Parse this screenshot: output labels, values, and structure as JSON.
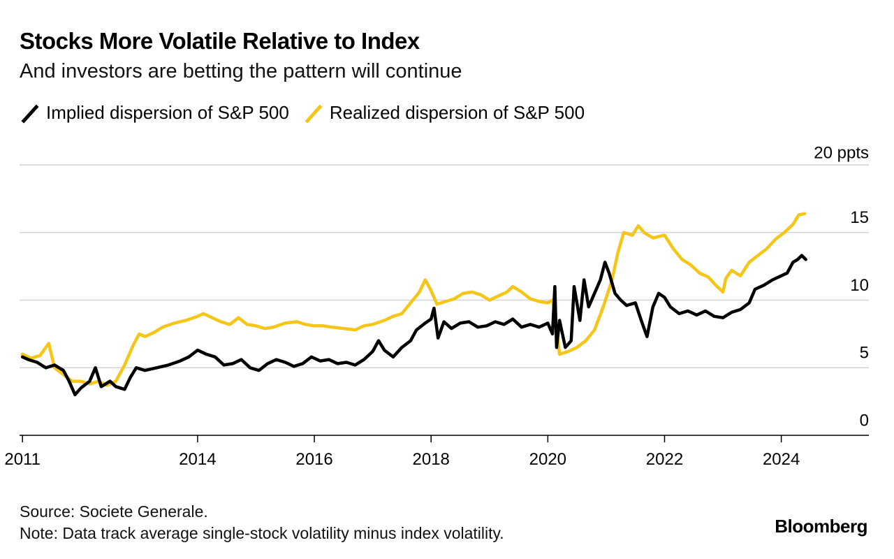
{
  "header": {
    "title": "Stocks More Volatile Relative to Index",
    "subtitle": "And investors are betting the pattern will continue"
  },
  "legend": [
    {
      "label": "Implied dispersion of S&P 500",
      "color": "#000000"
    },
    {
      "label": "Realized dispersion of S&P 500",
      "color": "#F5C518"
    }
  ],
  "footer": {
    "source": "Source: Societe Generale.",
    "note": "Note: Data track average single-stock volatility minus index volatility.",
    "brand": "Bloomberg"
  },
  "chart_data": {
    "type": "line",
    "title": "Stocks More Volatile Relative to Index",
    "subtitle": "And investors are betting the pattern will continue",
    "xlabel": "",
    "ylabel": "",
    "y_unit_label": "20 ppts",
    "ylim": [
      0,
      20
    ],
    "xlim": [
      2010.95,
      2025.5
    ],
    "y_ticks": [
      {
        "value": 0,
        "label": "0"
      },
      {
        "value": 5,
        "label": "5"
      },
      {
        "value": 10,
        "label": "10"
      },
      {
        "value": 15,
        "label": "15"
      },
      {
        "value": 20,
        "label": "20 ppts"
      }
    ],
    "x_ticks": [
      {
        "value": 2011,
        "label": "2011"
      },
      {
        "value": 2014,
        "label": "2014"
      },
      {
        "value": 2016,
        "label": "2016"
      },
      {
        "value": 2018,
        "label": "2018"
      },
      {
        "value": 2020,
        "label": "2020"
      },
      {
        "value": 2022,
        "label": "2022"
      },
      {
        "value": 2024,
        "label": "2024"
      }
    ],
    "grid": true,
    "legend_position": "top-left",
    "series": [
      {
        "name": "Realized dispersion of S&P 500",
        "color": "#F5C518",
        "points": [
          [
            2011.0,
            6.0
          ],
          [
            2011.15,
            5.7
          ],
          [
            2011.3,
            5.9
          ],
          [
            2011.45,
            6.8
          ],
          [
            2011.55,
            5.0
          ],
          [
            2011.7,
            4.5
          ],
          [
            2011.85,
            4.0
          ],
          [
            2012.0,
            4.0
          ],
          [
            2012.15,
            3.8
          ],
          [
            2012.3,
            4.0
          ],
          [
            2012.45,
            3.7
          ],
          [
            2012.6,
            4.0
          ],
          [
            2012.75,
            5.2
          ],
          [
            2012.9,
            6.7
          ],
          [
            2013.0,
            7.5
          ],
          [
            2013.1,
            7.3
          ],
          [
            2013.25,
            7.6
          ],
          [
            2013.4,
            8.0
          ],
          [
            2013.6,
            8.3
          ],
          [
            2013.8,
            8.5
          ],
          [
            2014.0,
            8.8
          ],
          [
            2014.1,
            9.0
          ],
          [
            2014.25,
            8.7
          ],
          [
            2014.4,
            8.4
          ],
          [
            2014.55,
            8.2
          ],
          [
            2014.7,
            8.7
          ],
          [
            2014.85,
            8.2
          ],
          [
            2015.0,
            8.1
          ],
          [
            2015.15,
            7.9
          ],
          [
            2015.3,
            8.0
          ],
          [
            2015.5,
            8.3
          ],
          [
            2015.7,
            8.4
          ],
          [
            2015.85,
            8.2
          ],
          [
            2016.0,
            8.1
          ],
          [
            2016.15,
            8.1
          ],
          [
            2016.3,
            8.0
          ],
          [
            2016.5,
            7.9
          ],
          [
            2016.7,
            7.8
          ],
          [
            2016.85,
            8.1
          ],
          [
            2017.0,
            8.2
          ],
          [
            2017.2,
            8.5
          ],
          [
            2017.35,
            8.8
          ],
          [
            2017.5,
            9.0
          ],
          [
            2017.65,
            9.8
          ],
          [
            2017.8,
            10.6
          ],
          [
            2017.9,
            11.5
          ],
          [
            2018.0,
            10.7
          ],
          [
            2018.1,
            9.7
          ],
          [
            2018.25,
            9.9
          ],
          [
            2018.4,
            10.1
          ],
          [
            2018.55,
            10.5
          ],
          [
            2018.7,
            10.6
          ],
          [
            2018.85,
            10.4
          ],
          [
            2019.0,
            10.0
          ],
          [
            2019.15,
            10.3
          ],
          [
            2019.3,
            10.6
          ],
          [
            2019.4,
            11.0
          ],
          [
            2019.55,
            10.6
          ],
          [
            2019.7,
            10.1
          ],
          [
            2019.85,
            9.9
          ],
          [
            2020.0,
            9.8
          ],
          [
            2020.08,
            10.0
          ],
          [
            2020.12,
            9.0
          ],
          [
            2020.2,
            6.0
          ],
          [
            2020.35,
            6.2
          ],
          [
            2020.5,
            6.5
          ],
          [
            2020.65,
            7.0
          ],
          [
            2020.8,
            7.8
          ],
          [
            2020.95,
            9.5
          ],
          [
            2021.1,
            11.5
          ],
          [
            2021.2,
            13.5
          ],
          [
            2021.3,
            15.0
          ],
          [
            2021.45,
            14.8
          ],
          [
            2021.55,
            15.5
          ],
          [
            2021.65,
            15.0
          ],
          [
            2021.8,
            14.6
          ],
          [
            2022.0,
            14.8
          ],
          [
            2022.15,
            13.8
          ],
          [
            2022.3,
            13.0
          ],
          [
            2022.45,
            12.6
          ],
          [
            2022.6,
            12.0
          ],
          [
            2022.75,
            11.7
          ],
          [
            2022.9,
            11.0
          ],
          [
            2023.0,
            10.6
          ],
          [
            2023.05,
            11.6
          ],
          [
            2023.15,
            12.2
          ],
          [
            2023.3,
            11.8
          ],
          [
            2023.45,
            12.8
          ],
          [
            2023.6,
            13.3
          ],
          [
            2023.75,
            13.8
          ],
          [
            2023.9,
            14.5
          ],
          [
            2024.05,
            15.0
          ],
          [
            2024.2,
            15.6
          ],
          [
            2024.3,
            16.3
          ],
          [
            2024.4,
            16.4
          ]
        ]
      },
      {
        "name": "Implied dispersion of S&P 500",
        "color": "#000000",
        "points": [
          [
            2011.0,
            5.8
          ],
          [
            2011.1,
            5.6
          ],
          [
            2011.25,
            5.4
          ],
          [
            2011.4,
            5.0
          ],
          [
            2011.55,
            5.2
          ],
          [
            2011.7,
            4.8
          ],
          [
            2011.8,
            4.0
          ],
          [
            2011.9,
            3.0
          ],
          [
            2012.0,
            3.5
          ],
          [
            2012.15,
            4.0
          ],
          [
            2012.25,
            5.0
          ],
          [
            2012.35,
            3.6
          ],
          [
            2012.5,
            4.0
          ],
          [
            2012.6,
            3.6
          ],
          [
            2012.75,
            3.4
          ],
          [
            2012.85,
            4.3
          ],
          [
            2012.95,
            5.0
          ],
          [
            2013.1,
            4.8
          ],
          [
            2013.3,
            5.0
          ],
          [
            2013.5,
            5.2
          ],
          [
            2013.7,
            5.5
          ],
          [
            2013.85,
            5.8
          ],
          [
            2014.0,
            6.3
          ],
          [
            2014.15,
            6.0
          ],
          [
            2014.3,
            5.8
          ],
          [
            2014.45,
            5.2
          ],
          [
            2014.6,
            5.3
          ],
          [
            2014.75,
            5.6
          ],
          [
            2014.9,
            5.0
          ],
          [
            2015.05,
            4.8
          ],
          [
            2015.2,
            5.3
          ],
          [
            2015.35,
            5.6
          ],
          [
            2015.5,
            5.4
          ],
          [
            2015.65,
            5.1
          ],
          [
            2015.8,
            5.3
          ],
          [
            2015.95,
            5.8
          ],
          [
            2016.1,
            5.5
          ],
          [
            2016.25,
            5.6
          ],
          [
            2016.4,
            5.3
          ],
          [
            2016.55,
            5.4
          ],
          [
            2016.7,
            5.2
          ],
          [
            2016.85,
            5.6
          ],
          [
            2017.0,
            6.2
          ],
          [
            2017.1,
            7.0
          ],
          [
            2017.2,
            6.3
          ],
          [
            2017.35,
            5.8
          ],
          [
            2017.5,
            6.5
          ],
          [
            2017.65,
            7.0
          ],
          [
            2017.75,
            7.8
          ],
          [
            2017.9,
            8.3
          ],
          [
            2018.0,
            8.6
          ],
          [
            2018.05,
            9.4
          ],
          [
            2018.12,
            7.2
          ],
          [
            2018.22,
            8.4
          ],
          [
            2018.35,
            7.9
          ],
          [
            2018.5,
            8.3
          ],
          [
            2018.65,
            8.4
          ],
          [
            2018.8,
            8.0
          ],
          [
            2018.95,
            8.1
          ],
          [
            2019.1,
            8.4
          ],
          [
            2019.25,
            8.2
          ],
          [
            2019.4,
            8.6
          ],
          [
            2019.55,
            8.0
          ],
          [
            2019.7,
            8.2
          ],
          [
            2019.85,
            8.0
          ],
          [
            2020.0,
            8.3
          ],
          [
            2020.08,
            7.5
          ],
          [
            2020.12,
            11.0
          ],
          [
            2020.15,
            6.5
          ],
          [
            2020.2,
            8.5
          ],
          [
            2020.3,
            6.5
          ],
          [
            2020.4,
            7.0
          ],
          [
            2020.45,
            11.0
          ],
          [
            2020.55,
            8.5
          ],
          [
            2020.62,
            11.5
          ],
          [
            2020.7,
            9.5
          ],
          [
            2020.8,
            10.5
          ],
          [
            2020.9,
            11.5
          ],
          [
            2020.98,
            12.8
          ],
          [
            2021.05,
            12.0
          ],
          [
            2021.15,
            10.5
          ],
          [
            2021.25,
            10.0
          ],
          [
            2021.35,
            9.6
          ],
          [
            2021.5,
            9.8
          ],
          [
            2021.6,
            8.5
          ],
          [
            2021.7,
            7.3
          ],
          [
            2021.8,
            9.5
          ],
          [
            2021.9,
            10.5
          ],
          [
            2022.0,
            10.2
          ],
          [
            2022.1,
            9.5
          ],
          [
            2022.25,
            9.0
          ],
          [
            2022.4,
            9.2
          ],
          [
            2022.55,
            8.9
          ],
          [
            2022.7,
            9.2
          ],
          [
            2022.85,
            8.8
          ],
          [
            2023.0,
            8.7
          ],
          [
            2023.15,
            9.1
          ],
          [
            2023.3,
            9.3
          ],
          [
            2023.45,
            9.8
          ],
          [
            2023.55,
            10.8
          ],
          [
            2023.7,
            11.1
          ],
          [
            2023.85,
            11.5
          ],
          [
            2024.0,
            11.8
          ],
          [
            2024.1,
            12.0
          ],
          [
            2024.2,
            12.8
          ],
          [
            2024.28,
            13.0
          ],
          [
            2024.35,
            13.3
          ],
          [
            2024.42,
            13.0
          ]
        ]
      }
    ]
  }
}
